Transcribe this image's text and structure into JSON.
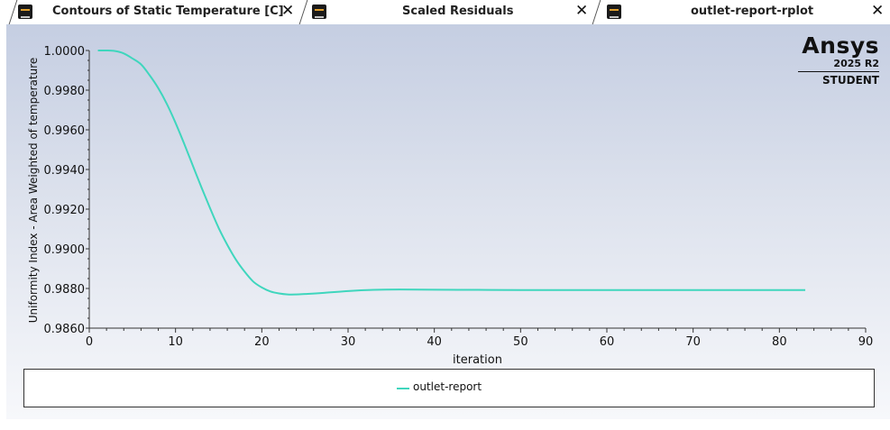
{
  "tabs": [
    {
      "label": "Contours of Static Temperature [C]",
      "close": "✕"
    },
    {
      "label": "Scaled Residuals",
      "close": "✕"
    },
    {
      "label": "outlet-report-rplot",
      "close": "✕"
    }
  ],
  "logo": {
    "brand": "Ansys",
    "version": "2025 R2",
    "edition": "STUDENT"
  },
  "colors": {
    "series": "#3fd6bd",
    "background_top": "#c5cee2",
    "background_bottom": "#f7f8fb"
  },
  "chart_data": {
    "type": "line",
    "xlabel": "iteration",
    "ylabel": "Uniformity Index - Area Weighted of temperature",
    "xlim": [
      0,
      90
    ],
    "ylim": [
      0.986,
      1.0
    ],
    "xticks": [
      "0",
      "10",
      "20",
      "30",
      "40",
      "50",
      "60",
      "70",
      "80",
      "90"
    ],
    "yticks": [
      "0.9860",
      "0.9880",
      "0.9900",
      "0.9920",
      "0.9940",
      "0.9960",
      "0.9980",
      "1.0000"
    ],
    "legend": "bottom",
    "series": [
      {
        "name": "outlet-report",
        "x": [
          1,
          2,
          3,
          4,
          5,
          6,
          7,
          8,
          9,
          10,
          11,
          12,
          13,
          14,
          15,
          16,
          17,
          18,
          19,
          20,
          21,
          22,
          23,
          24,
          25,
          27,
          30,
          33,
          36,
          40,
          45,
          50,
          60,
          70,
          80,
          83
        ],
        "y": [
          1.0,
          1.0,
          0.99997,
          0.99985,
          0.9996,
          0.9993,
          0.99875,
          0.9981,
          0.9973,
          0.99635,
          0.9953,
          0.9942,
          0.9931,
          0.99205,
          0.99105,
          0.9902,
          0.98945,
          0.98885,
          0.98835,
          0.98805,
          0.98785,
          0.98775,
          0.9877,
          0.9877,
          0.98772,
          0.98777,
          0.98787,
          0.98793,
          0.98795,
          0.98794,
          0.98793,
          0.98792,
          0.98792,
          0.98792,
          0.98792,
          0.98792
        ]
      }
    ]
  }
}
